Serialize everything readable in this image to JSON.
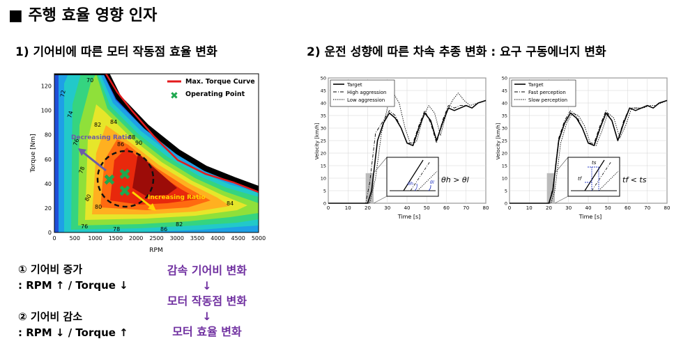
{
  "page": {
    "title": "■ 주행 효율 영향 인자",
    "left_heading": "1) 기어비에 따른 모터 작동점 효율 변화",
    "right_heading": "2) 운전 성향에 따른 차속 추종 변화 : 요구 구동에너지 변화"
  },
  "notes": {
    "increase_title": "① 기어비 증가",
    "increase_detail": ": RPM ↑ / Torque ↓",
    "decrease_title": "② 기어비 감소",
    "decrease_detail": ": RPM ↓ / Torque ↑",
    "flow": [
      "감속 기어비 변화",
      "↓",
      "모터 작동점 변화",
      "↓",
      "모터 효율 변화"
    ]
  },
  "efficiency_map": {
    "xlabel": "RPM",
    "ylabel": "Torque [Nm]",
    "xticks": [
      "0",
      "500",
      "1000",
      "1500",
      "2000",
      "2500",
      "3000",
      "3500",
      "4000",
      "4500",
      "5000"
    ],
    "yticks": [
      "0",
      "20",
      "40",
      "60",
      "80",
      "100",
      "120"
    ],
    "legend": [
      "Max. Torque Curve",
      "Operating Point"
    ],
    "annotations": [
      "Decreasing Ratio",
      "Increasing Ratio"
    ],
    "contour_labels": [
      "72",
      "74",
      "76",
      "78",
      "80",
      "82",
      "84",
      "86",
      "88",
      "90",
      "70",
      "84",
      "76",
      "78",
      "86",
      "82",
      "80"
    ],
    "colors": {
      "curve": "#e31a1c",
      "point": "#1fa84f",
      "arrow_up": "#6b5ba8",
      "arrow_down": "#ffd400"
    }
  },
  "chart_data": [
    {
      "type": "line",
      "xlabel": "Time [s]",
      "ylabel": "Velocity [km/h]",
      "xlim": [
        0,
        80
      ],
      "ylim": [
        0,
        50
      ],
      "xticks": [
        "0",
        "10",
        "20",
        "30",
        "40",
        "50",
        "60",
        "70",
        "80"
      ],
      "yticks": [
        "0",
        "5",
        "10",
        "15",
        "20",
        "25",
        "30",
        "35",
        "40",
        "45",
        "50"
      ],
      "legend": [
        "Target",
        "High aggression",
        "Low aggression"
      ],
      "inset_label": "θh > θl",
      "series": [
        {
          "name": "Target",
          "x": [
            0,
            20,
            22,
            25,
            28,
            31,
            34,
            37,
            40,
            43,
            46,
            49,
            52,
            55,
            58,
            61,
            64,
            67,
            70,
            73,
            76,
            80
          ],
          "y": [
            0,
            0,
            5,
            25,
            32,
            36,
            34,
            30,
            24,
            23,
            30,
            36,
            33,
            25,
            32,
            38,
            37,
            38,
            39,
            38,
            40,
            41
          ]
        },
        {
          "name": "High aggression",
          "x": [
            0,
            19,
            21,
            24,
            28,
            31,
            34,
            37,
            40,
            43,
            46,
            49,
            52,
            55,
            58,
            61,
            64,
            67,
            70,
            73,
            76,
            80
          ],
          "y": [
            0,
            0,
            8,
            28,
            33,
            37,
            35,
            30,
            24,
            24,
            31,
            37,
            32,
            24,
            33,
            39,
            38,
            39,
            39,
            38,
            40,
            41
          ]
        },
        {
          "name": "Low aggression",
          "x": [
            0,
            21,
            24,
            27,
            30,
            33,
            36,
            39,
            42,
            45,
            48,
            51,
            54,
            57,
            60,
            63,
            66,
            69,
            72,
            76,
            80
          ],
          "y": [
            0,
            0,
            10,
            28,
            38,
            44,
            40,
            30,
            23,
            25,
            34,
            39,
            36,
            27,
            36,
            41,
            44,
            41,
            39,
            40,
            41
          ]
        }
      ]
    },
    {
      "type": "line",
      "xlabel": "Time [s]",
      "ylabel": "Velocity [km/h]",
      "xlim": [
        0,
        80
      ],
      "ylim": [
        0,
        50
      ],
      "xticks": [
        "0",
        "10",
        "20",
        "30",
        "40",
        "50",
        "60",
        "70",
        "80"
      ],
      "yticks": [
        "0",
        "5",
        "10",
        "15",
        "20",
        "25",
        "30",
        "35",
        "40",
        "45",
        "50"
      ],
      "legend": [
        "Target",
        "Fast perception",
        "Slow perception"
      ],
      "inset_label": "tf < ts",
      "inset_marks": [
        "tf",
        "ts"
      ],
      "series": [
        {
          "name": "Target",
          "x": [
            0,
            20,
            22,
            25,
            28,
            31,
            34,
            37,
            40,
            43,
            46,
            49,
            52,
            55,
            58,
            61,
            64,
            67,
            70,
            73,
            76,
            80
          ],
          "y": [
            0,
            0,
            5,
            25,
            32,
            36,
            34,
            30,
            24,
            23,
            30,
            36,
            33,
            25,
            32,
            38,
            37,
            38,
            39,
            38,
            40,
            41
          ]
        },
        {
          "name": "Fast perception",
          "x": [
            0,
            20,
            22,
            25,
            28,
            31,
            34,
            37,
            40,
            43,
            46,
            49,
            52,
            55,
            58,
            61,
            64,
            67,
            70,
            73,
            76,
            80
          ],
          "y": [
            0,
            0,
            6,
            26,
            33,
            37,
            35,
            30,
            24,
            24,
            31,
            37,
            33,
            25,
            33,
            38,
            38,
            38,
            39,
            38,
            40,
            41
          ]
        },
        {
          "name": "Slow perception",
          "x": [
            0,
            21,
            23,
            26,
            29,
            32,
            35,
            38,
            41,
            44,
            47,
            50,
            53,
            56,
            59,
            62,
            65,
            68,
            71,
            74,
            77,
            80
          ],
          "y": [
            0,
            0,
            5,
            24,
            32,
            36,
            35,
            31,
            24,
            23,
            29,
            36,
            34,
            26,
            31,
            38,
            38,
            38,
            39,
            39,
            40,
            41
          ]
        }
      ]
    }
  ]
}
